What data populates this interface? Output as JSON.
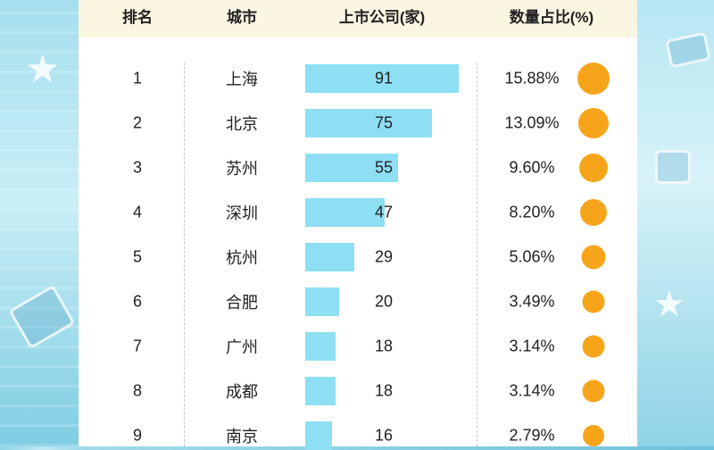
{
  "chart_data": {
    "type": "table",
    "headers": {
      "rank": "排名",
      "city": "城市",
      "companies": "上市公司(家)",
      "share": "数量占比(%)"
    },
    "rows": [
      {
        "rank": "1",
        "city": "上海",
        "value": 91,
        "share": "15.88%"
      },
      {
        "rank": "2",
        "city": "北京",
        "value": 75,
        "share": "13.09%"
      },
      {
        "rank": "3",
        "city": "苏州",
        "value": 55,
        "share": "9.60%"
      },
      {
        "rank": "4",
        "city": "深圳",
        "value": 47,
        "share": "8.20%"
      },
      {
        "rank": "5",
        "city": "杭州",
        "value": 29,
        "share": "5.06%"
      },
      {
        "rank": "6",
        "city": "合肥",
        "value": 20,
        "share": "3.49%"
      },
      {
        "rank": "7",
        "city": "广州",
        "value": 18,
        "share": "3.14%"
      },
      {
        "rank": "8",
        "city": "成都",
        "value": 18,
        "share": "3.14%"
      },
      {
        "rank": "9",
        "city": "南京",
        "value": 16,
        "share": "2.79%"
      }
    ],
    "bar_color": "#8edff4",
    "dot_color": "#f6a51b",
    "header_background": "#fbf6e2"
  }
}
